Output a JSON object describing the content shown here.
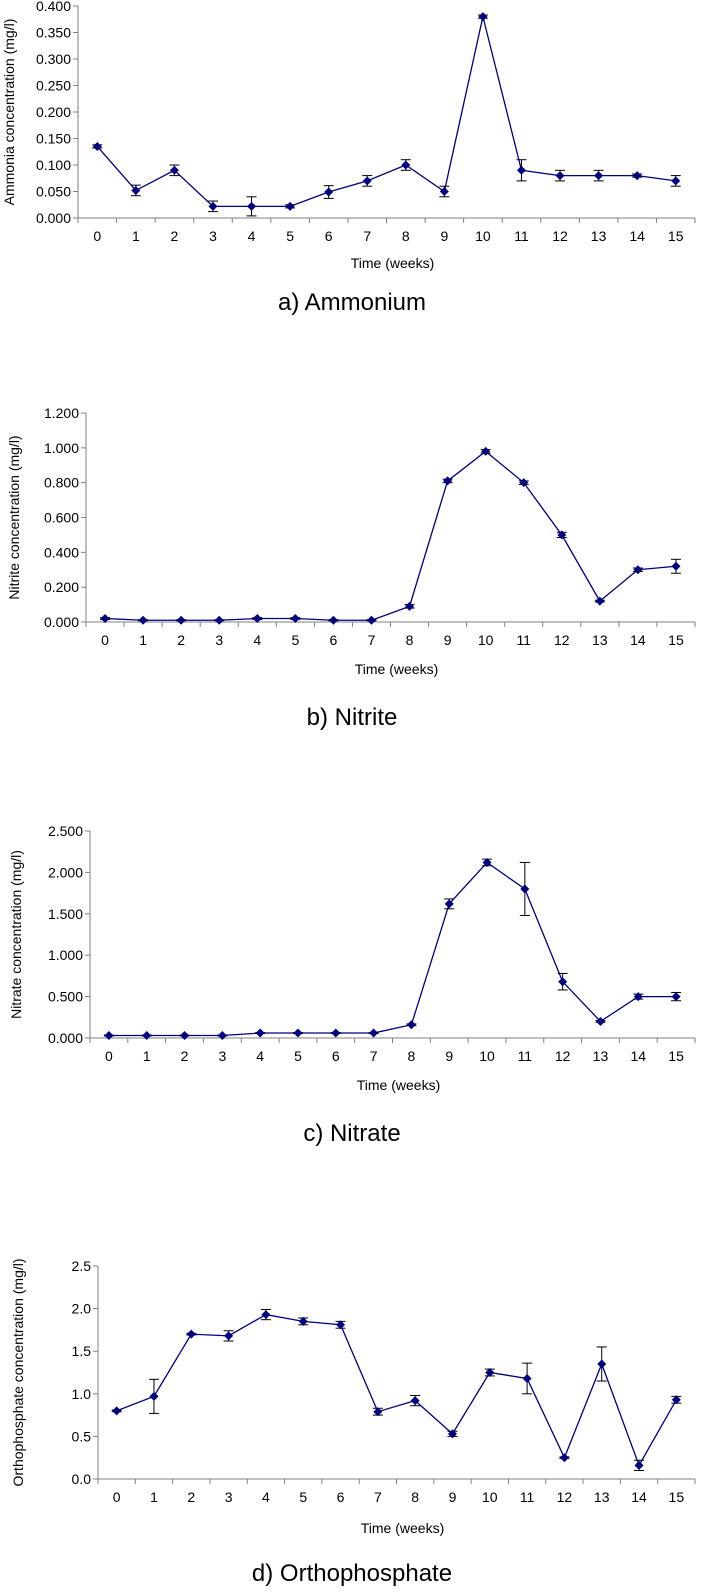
{
  "chart_data": [
    {
      "type": "line",
      "caption": "a) Ammonium",
      "xlabel": "Time (weeks)",
      "ylabel": "Ammonia concentration (mg/l)",
      "x": [
        0,
        1,
        2,
        3,
        4,
        5,
        6,
        7,
        8,
        9,
        10,
        11,
        12,
        13,
        14,
        15
      ],
      "ylim": [
        0,
        0.4
      ],
      "yticks": [
        0,
        0.05,
        0.1,
        0.15,
        0.2,
        0.25,
        0.3,
        0.35,
        0.4
      ],
      "ytick_labels": [
        "0.000",
        "0.050",
        "0.100",
        "0.150",
        "0.200",
        "0.250",
        "0.300",
        "0.350",
        "0.400"
      ],
      "series": [
        {
          "name": "Ammonium",
          "color": "#000080",
          "values": [
            0.135,
            0.052,
            0.09,
            0.022,
            0.022,
            0.022,
            0.049,
            0.07,
            0.1,
            0.05,
            0.38,
            0.09,
            0.08,
            0.08,
            0.08,
            0.07
          ],
          "errors": [
            0.003,
            0.01,
            0.01,
            0.01,
            0.018,
            0.003,
            0.012,
            0.01,
            0.01,
            0.01,
            0.003,
            0.02,
            0.01,
            0.01,
            0.003,
            0.01
          ]
        }
      ]
    },
    {
      "type": "line",
      "caption": "b) Nitrite",
      "xlabel": "Time (weeks)",
      "ylabel": "Nitrite concentration (mg/l)",
      "x": [
        0,
        1,
        2,
        3,
        4,
        5,
        6,
        7,
        8,
        9,
        10,
        11,
        12,
        13,
        14,
        15
      ],
      "ylim": [
        0,
        1.2
      ],
      "yticks": [
        0,
        0.2,
        0.4,
        0.6,
        0.8,
        1.0,
        1.2
      ],
      "ytick_labels": [
        "0.000",
        "0.200",
        "0.400",
        "0.600",
        "0.800",
        "1.000",
        "1.200"
      ],
      "series": [
        {
          "name": "Nitrite",
          "color": "#000080",
          "values": [
            0.02,
            0.01,
            0.01,
            0.01,
            0.02,
            0.02,
            0.01,
            0.01,
            0.09,
            0.81,
            0.98,
            0.8,
            0.5,
            0.12,
            0.3,
            0.32
          ],
          "errors": [
            0.005,
            0.003,
            0.003,
            0.003,
            0.005,
            0.005,
            0.003,
            0.003,
            0.01,
            0.01,
            0.01,
            0.01,
            0.015,
            0.005,
            0.01,
            0.04
          ]
        }
      ]
    },
    {
      "type": "line",
      "caption": "c) Nitrate",
      "xlabel": "Time (weeks)",
      "ylabel": "Nitrate concentration (mg/l)",
      "x": [
        0,
        1,
        2,
        3,
        4,
        5,
        6,
        7,
        8,
        9,
        10,
        11,
        12,
        13,
        14,
        15
      ],
      "ylim": [
        0,
        2.5
      ],
      "yticks": [
        0,
        0.5,
        1.0,
        1.5,
        2.0,
        2.5
      ],
      "ytick_labels": [
        "0.000",
        "0.500",
        "1.000",
        "1.500",
        "2.000",
        "2.500"
      ],
      "series": [
        {
          "name": "Nitrate",
          "color": "#000080",
          "values": [
            0.03,
            0.03,
            0.03,
            0.03,
            0.06,
            0.06,
            0.06,
            0.06,
            0.16,
            1.62,
            2.12,
            1.8,
            0.68,
            0.2,
            0.5,
            0.5
          ],
          "errors": [
            0.005,
            0.005,
            0.005,
            0.005,
            0.005,
            0.005,
            0.005,
            0.005,
            0.01,
            0.06,
            0.04,
            0.32,
            0.1,
            0.01,
            0.03,
            0.05
          ]
        }
      ]
    },
    {
      "type": "line",
      "caption": "d) Orthophosphate",
      "xlabel": "Time (weeks)",
      "ylabel": "Orthophosphate concentration  (mg/l)",
      "x": [
        0,
        1,
        2,
        3,
        4,
        5,
        6,
        7,
        8,
        9,
        10,
        11,
        12,
        13,
        14,
        15
      ],
      "ylim": [
        0,
        2.5
      ],
      "yticks": [
        0,
        0.5,
        1.0,
        1.5,
        2.0,
        2.5
      ],
      "ytick_labels": [
        "0.0",
        "0.5",
        "1.0",
        "1.5",
        "2.0",
        "2.5"
      ],
      "series": [
        {
          "name": "Orthophosphate",
          "color": "#000080",
          "values": [
            0.8,
            0.97,
            1.7,
            1.68,
            1.93,
            1.85,
            1.81,
            0.79,
            0.92,
            0.53,
            1.25,
            1.18,
            0.25,
            1.35,
            0.16,
            0.93
          ],
          "errors": [
            0.01,
            0.2,
            0.01,
            0.06,
            0.06,
            0.04,
            0.04,
            0.04,
            0.06,
            0.03,
            0.04,
            0.18,
            0.01,
            0.2,
            0.06,
            0.04
          ]
        }
      ]
    }
  ]
}
